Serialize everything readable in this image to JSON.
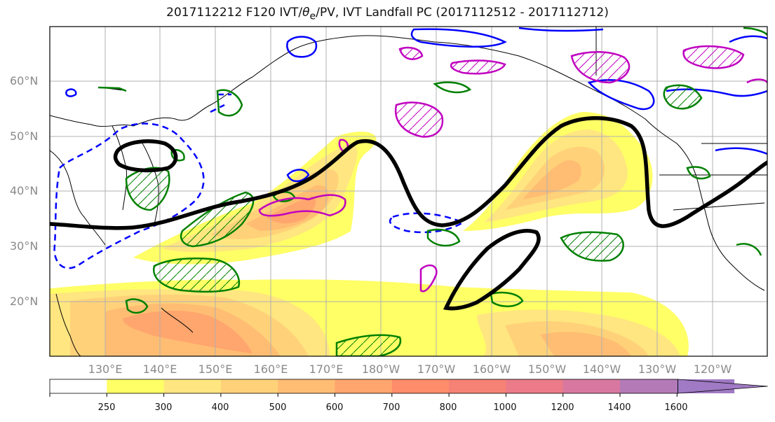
{
  "title": "2017112212 F120 IVT/θe/PV, IVT Landfall PC (2017112512 - 2017112712)",
  "title_parts": {
    "before": "2017112212 F120 IVT/",
    "theta": "θ",
    "sub": "e",
    "after": "/PV, IVT Landfall PC (2017112512 - 2017112712)"
  },
  "latitude_labels": [
    "60°N",
    "50°N",
    "40°N",
    "30°N",
    "20°N"
  ],
  "longitude_labels": [
    "130°E",
    "140°E",
    "150°E",
    "160°E",
    "170°E",
    "180°W",
    "170°W",
    "160°W",
    "150°W",
    "140°W",
    "130°W",
    "120°W"
  ],
  "colorbar": {
    "ticks": [
      "250",
      "300",
      "400",
      "500",
      "600",
      "700",
      "800",
      "1000",
      "1200",
      "1400",
      "1600"
    ],
    "colors": [
      "#ffffff",
      "#ffff66",
      "#ffe680",
      "#ffd27a",
      "#ffbd73",
      "#ffa56e",
      "#ff8c6b",
      "#f58275",
      "#eb7b88",
      "#d878a0",
      "#b47ab8",
      "#a07ac4"
    ],
    "extend": "max"
  },
  "colors": {
    "ivt_contour": "#000000",
    "theta_e": "#008000",
    "pv_positive": "#0000ff",
    "pv_negative_dashed": "#0000ff",
    "landfall_pc": "#c000c0",
    "coastline": "#000000",
    "grid": "#b0b0b0"
  },
  "map_extent": {
    "lon_min": 120,
    "lon_max": 250,
    "lat_min": 10,
    "lat_max": 70
  }
}
